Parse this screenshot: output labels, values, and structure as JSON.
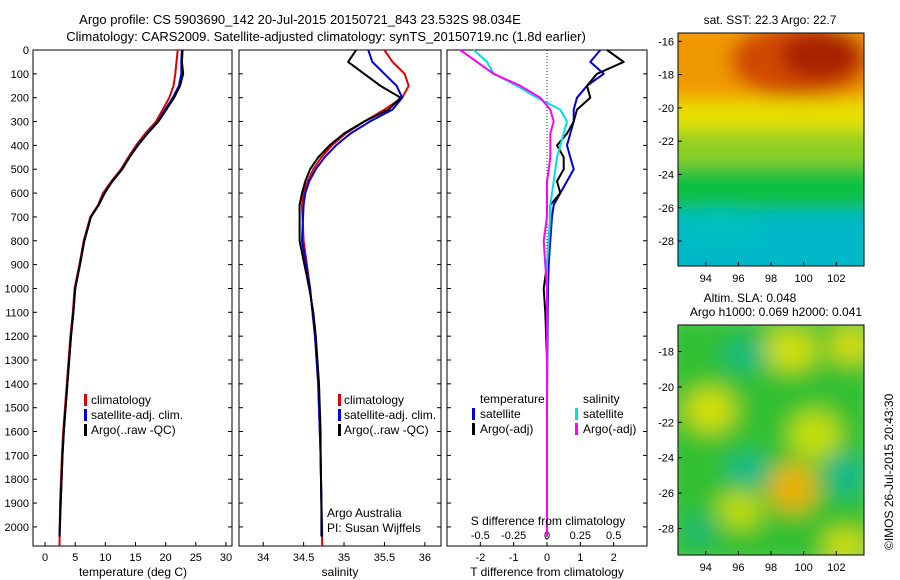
{
  "header": {
    "line1": "Argo profile: CS 5903690_142 20-Jul-2015 20150721_843 23.532S 98.034E",
    "line2": "Climatology: CARS2009. Satellite-adjusted climatology: synTS_20150719.nc (1.8d earlier)"
  },
  "colors": {
    "climatology": "#e00000",
    "satellite": "#0000e0",
    "argo": "#000000",
    "sal_satellite": "#00e0e0",
    "sal_argo": "#ff00ff"
  },
  "chart_data": [
    {
      "type": "line",
      "name": "temperature-profile",
      "xlabel": "temperature (deg C)",
      "xlim": [
        -2,
        31
      ],
      "ylim": [
        2080,
        0
      ],
      "xticks": [
        0,
        5,
        10,
        15,
        20,
        25,
        30
      ],
      "yticks": [
        0,
        100,
        200,
        300,
        400,
        500,
        600,
        700,
        800,
        900,
        1000,
        1100,
        1200,
        1300,
        1400,
        1500,
        1600,
        1700,
        1800,
        1900,
        2000
      ],
      "legend": [
        "climatology",
        "satellite-adj. clim.",
        "Argo(..raw -QC)"
      ],
      "legend_position": "lower-center",
      "series": [
        {
          "name": "climatology",
          "color": "#e00000",
          "x": [
            22.0,
            21.8,
            21.6,
            21.3,
            20.6,
            19.5,
            18.4,
            16.6,
            15.1,
            13.8,
            12.6,
            11.0,
            9.6,
            8.8,
            7.5,
            6.4,
            5.7,
            5.3,
            4.9,
            4.6,
            4.2,
            3.9,
            3.6,
            3.3,
            3.0,
            2.8,
            2.5,
            2.4
          ],
          "y": [
            0,
            50,
            100,
            150,
            200,
            250,
            300,
            350,
            400,
            450,
            500,
            550,
            600,
            650,
            700,
            800,
            900,
            950,
            1000,
            1100,
            1200,
            1300,
            1400,
            1500,
            1600,
            1700,
            1900,
            2080
          ]
        },
        {
          "name": "satellite-adj. clim.",
          "color": "#0000e0",
          "x": [
            22.7,
            22.6,
            22.6,
            22.2,
            21.2,
            19.9,
            18.7,
            16.9,
            15.3,
            14.0,
            12.8,
            11.2,
            9.8,
            8.9,
            7.6,
            6.5,
            5.8,
            5.4,
            5.0,
            4.7,
            4.3,
            4.0,
            3.7,
            3.4,
            3.1,
            2.9,
            2.6,
            2.4
          ],
          "y": [
            0,
            50,
            100,
            150,
            200,
            250,
            300,
            350,
            400,
            450,
            500,
            550,
            600,
            650,
            700,
            800,
            900,
            950,
            1000,
            1100,
            1200,
            1300,
            1400,
            1500,
            1600,
            1700,
            1900,
            2040
          ]
        },
        {
          "name": "Argo(..raw -QC)",
          "color": "#000000",
          "x": [
            22.8,
            22.7,
            22.9,
            22.4,
            21.4,
            20.1,
            18.8,
            17.0,
            15.4,
            14.0,
            12.8,
            11.1,
            9.9,
            8.9,
            7.6,
            6.5,
            5.8,
            5.4,
            5.0,
            4.7,
            4.3,
            4.0,
            3.7,
            3.4,
            3.1,
            2.9,
            2.6,
            2.4
          ],
          "y": [
            0,
            50,
            100,
            150,
            200,
            250,
            300,
            350,
            400,
            450,
            500,
            550,
            600,
            650,
            700,
            800,
            900,
            950,
            1000,
            1100,
            1200,
            1300,
            1400,
            1500,
            1600,
            1700,
            1900,
            2040
          ]
        }
      ]
    },
    {
      "type": "line",
      "name": "salinity-profile",
      "xlabel": "salinity",
      "xlim": [
        33.7,
        36.2
      ],
      "ylim": [
        2080,
        0
      ],
      "xticks": [
        34,
        34.5,
        35,
        35.5,
        36
      ],
      "legend": [
        "climatology",
        "satellite-adj. clim.",
        "Argo(..raw -QC)"
      ],
      "legend_position": "lower-right",
      "annotation": [
        "Argo Australia",
        "PI: Susan Wijffels"
      ],
      "series": [
        {
          "name": "climatology",
          "color": "#e00000",
          "x": [
            35.5,
            35.6,
            35.75,
            35.8,
            35.72,
            35.5,
            35.25,
            35.02,
            34.85,
            34.72,
            34.62,
            34.55,
            34.5,
            34.48,
            34.5,
            34.54,
            34.58,
            34.61,
            34.64,
            34.66,
            34.68,
            34.69,
            34.7,
            34.71,
            34.72,
            34.73
          ],
          "y": [
            0,
            50,
            100,
            150,
            200,
            250,
            300,
            350,
            400,
            450,
            500,
            550,
            600,
            650,
            800,
            900,
            1000,
            1100,
            1200,
            1300,
            1400,
            1500,
            1600,
            1700,
            1900,
            2080
          ]
        },
        {
          "name": "satellite-adj. clim.",
          "color": "#0000e0",
          "x": [
            35.3,
            35.35,
            35.5,
            35.65,
            35.72,
            35.6,
            35.32,
            35.08,
            34.9,
            34.76,
            34.65,
            34.57,
            34.52,
            34.5,
            34.48,
            34.53,
            34.58,
            34.61,
            34.64,
            34.66,
            34.68,
            34.69,
            34.7,
            34.71,
            34.72,
            34.73
          ],
          "y": [
            0,
            50,
            100,
            150,
            200,
            250,
            300,
            350,
            400,
            450,
            500,
            550,
            600,
            650,
            800,
            900,
            1000,
            1100,
            1200,
            1300,
            1400,
            1500,
            1600,
            1700,
            1900,
            2040
          ]
        },
        {
          "name": "Argo(..raw -QC)",
          "color": "#000000",
          "x": [
            35.15,
            35.05,
            35.25,
            35.45,
            35.7,
            35.55,
            35.25,
            35.0,
            34.82,
            34.68,
            34.58,
            34.52,
            34.48,
            34.45,
            34.45,
            34.51,
            34.57,
            34.62,
            34.65,
            34.67,
            34.69,
            34.7,
            34.71,
            34.71,
            34.72,
            34.72
          ],
          "y": [
            0,
            50,
            100,
            150,
            200,
            250,
            300,
            350,
            400,
            450,
            500,
            550,
            600,
            650,
            800,
            900,
            1000,
            1100,
            1200,
            1300,
            1400,
            1500,
            1600,
            1700,
            1900,
            2040
          ]
        }
      ]
    },
    {
      "type": "line",
      "name": "difference-profile",
      "xlabel": "T difference from climatology",
      "top_label": "S difference from climatology",
      "xlim": [
        -3,
        3
      ],
      "ylim": [
        2080,
        0
      ],
      "xticks": [
        -2,
        -1,
        0,
        1,
        2
      ],
      "top_ticks": [
        -0.5,
        -0.25,
        0,
        0.25,
        0.5
      ],
      "legend_temperature_title": "temperature",
      "legend_salinity_title": "salinity",
      "legend_temperature": [
        "satellite",
        "Argo(-adj)"
      ],
      "legend_salinity": [
        "satellite",
        "Argo(-adj)"
      ],
      "legend_position": "lower-center",
      "series": [
        {
          "name": "temperature satellite",
          "color": "#0000e0",
          "x": [
            1.6,
            1.3,
            1.7,
            1.2,
            0.9,
            0.8,
            0.8,
            0.7,
            0.6,
            0.7,
            0.8,
            0.6,
            0.4,
            0.2,
            0.15,
            0.1,
            0.05,
            0.03,
            0.02,
            0.01,
            0.0,
            0.0,
            0.0,
            0.0
          ],
          "y": [
            0,
            50,
            100,
            150,
            200,
            250,
            300,
            350,
            400,
            450,
            500,
            550,
            600,
            650,
            700,
            800,
            900,
            1000,
            1100,
            1300,
            1500,
            1700,
            1900,
            2040
          ]
        },
        {
          "name": "temperature Argo(-adj)",
          "color": "#000000",
          "x": [
            1.8,
            2.3,
            1.5,
            1.2,
            1.3,
            0.9,
            0.8,
            0.6,
            0.3,
            0.5,
            0.5,
            0.3,
            0.4,
            0.1,
            0.1,
            0.05,
            0.0,
            -0.1,
            -0.05,
            0.0,
            0.0,
            0.0,
            0.0,
            0.0
          ],
          "y": [
            0,
            50,
            100,
            150,
            200,
            250,
            300,
            350,
            400,
            450,
            500,
            550,
            600,
            650,
            700,
            800,
            900,
            1000,
            1100,
            1300,
            1500,
            1700,
            1900,
            2040
          ]
        },
        {
          "name": "salinity satellite",
          "color": "#00e0e0",
          "x": [
            -2.2,
            -1.8,
            -1.6,
            -0.9,
            -0.3,
            0.4,
            0.6,
            0.5,
            0.4,
            0.3,
            0.25,
            0.2,
            0.15,
            0.1,
            0.1,
            0.05,
            0.0,
            0.0,
            0.0,
            0.0,
            0.0,
            0.0,
            0.0,
            0.0
          ],
          "y": [
            0,
            50,
            100,
            150,
            200,
            250,
            300,
            350,
            400,
            450,
            500,
            550,
            600,
            650,
            700,
            800,
            900,
            1000,
            1100,
            1300,
            1500,
            1700,
            1900,
            2040
          ]
        },
        {
          "name": "salinity Argo(-adj)",
          "color": "#ff00ff",
          "x": [
            -2.6,
            -2.1,
            -1.6,
            -0.8,
            -0.2,
            0.1,
            0.2,
            0.1,
            0.1,
            0.1,
            0.05,
            0.0,
            0.0,
            0.0,
            0.0,
            -0.1,
            -0.05,
            0.0,
            0.0,
            0.0,
            0.0,
            0.0,
            0.0,
            0.0
          ],
          "y": [
            0,
            50,
            100,
            150,
            200,
            250,
            300,
            350,
            400,
            450,
            500,
            550,
            600,
            650,
            700,
            800,
            900,
            1000,
            1100,
            1300,
            1500,
            1700,
            1900,
            2040
          ]
        }
      ]
    },
    {
      "type": "heatmap",
      "name": "sst-map",
      "title": "sat. SST: 22.3  Argo: 22.7",
      "xlim": [
        92.3,
        103.7
      ],
      "ylim": [
        -29.5,
        -15.5
      ],
      "xticks": [
        94,
        96,
        98,
        100,
        102
      ],
      "yticks": [
        -16,
        -18,
        -20,
        -22,
        -24,
        -26,
        -28
      ],
      "colormap": [
        "#00b4d0",
        "#00c070",
        "#10c020",
        "#a0d820",
        "#f0e000",
        "#f09000",
        "#d04000",
        "#a02000"
      ]
    },
    {
      "type": "heatmap",
      "name": "sla-map",
      "title_line1": "Altim. SLA: 0.048",
      "title_line2": "Argo h1000: 0.069 h2000: 0.041",
      "xlim": [
        92.3,
        103.7
      ],
      "ylim": [
        -29.5,
        -16.5
      ],
      "xticks": [
        94,
        96,
        98,
        100,
        102
      ],
      "yticks": [
        -18,
        -20,
        -22,
        -24,
        -26,
        -28
      ],
      "colormap": [
        "#00b4a0",
        "#10c030",
        "#80d020",
        "#e0e000",
        "#f0a000"
      ]
    }
  ],
  "credit": "©IMOS 26-Jul-2015 20:43:30"
}
